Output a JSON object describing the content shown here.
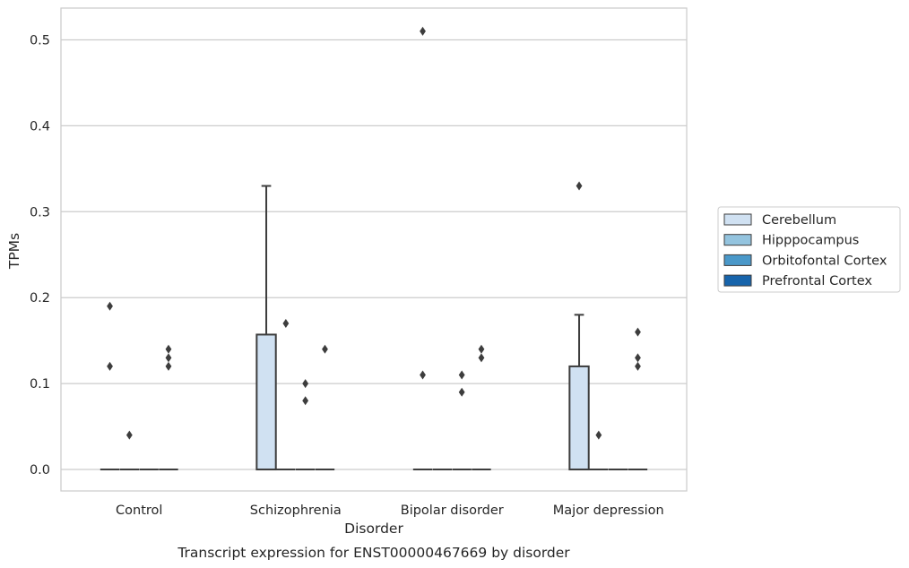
{
  "chart_data": {
    "type": "box",
    "caption": "Transcript expression for ENST00000467669 by disorder",
    "xlabel": "Disorder",
    "ylabel": "TPMs",
    "ylim": [
      -0.025,
      0.537
    ],
    "yticks": [
      "0.0",
      "0.1",
      "0.2",
      "0.3",
      "0.4",
      "0.5"
    ],
    "ytick_values": [
      0.0,
      0.1,
      0.2,
      0.3,
      0.4,
      0.5
    ],
    "grid": true,
    "legend_position": "right",
    "categories": [
      "Control",
      "Schizophrenia",
      "Bipolar disorder",
      "Major depression"
    ],
    "series": [
      {
        "name": "Cerebellum",
        "color": "#d0e1f2",
        "boxes": [
          {
            "q1": 0,
            "median": 0,
            "q3": 0,
            "whisker_low": 0,
            "whisker_high": 0,
            "outliers": [
              0.19,
              0.12
            ]
          },
          {
            "q1": 0,
            "median": 0,
            "q3": 0.157,
            "whisker_low": 0,
            "whisker_high": 0.33,
            "outliers": []
          },
          {
            "q1": 0,
            "median": 0,
            "q3": 0,
            "whisker_low": 0,
            "whisker_high": 0,
            "outliers": [
              0.51,
              0.11
            ]
          },
          {
            "q1": 0,
            "median": 0,
            "q3": 0.12,
            "whisker_low": 0,
            "whisker_high": 0.18,
            "outliers": [
              0.33
            ]
          }
        ]
      },
      {
        "name": "Hipppocampus",
        "color": "#94c4df",
        "boxes": [
          {
            "q1": 0,
            "median": 0,
            "q3": 0,
            "whisker_low": 0,
            "whisker_high": 0,
            "outliers": [
              0.04
            ]
          },
          {
            "q1": 0,
            "median": 0,
            "q3": 0,
            "whisker_low": 0,
            "whisker_high": 0,
            "outliers": [
              0.17
            ]
          },
          {
            "q1": 0,
            "median": 0,
            "q3": 0,
            "whisker_low": 0,
            "whisker_high": 0,
            "outliers": []
          },
          {
            "q1": 0,
            "median": 0,
            "q3": 0,
            "whisker_low": 0,
            "whisker_high": 0,
            "outliers": [
              0.04
            ]
          }
        ]
      },
      {
        "name": "Orbitofontal Cortex",
        "color": "#4a98c9",
        "boxes": [
          {
            "q1": 0,
            "median": 0,
            "q3": 0,
            "whisker_low": 0,
            "whisker_high": 0,
            "outliers": []
          },
          {
            "q1": 0,
            "median": 0,
            "q3": 0,
            "whisker_low": 0,
            "whisker_high": 0,
            "outliers": [
              0.1,
              0.08
            ]
          },
          {
            "q1": 0,
            "median": 0,
            "q3": 0,
            "whisker_low": 0,
            "whisker_high": 0,
            "outliers": [
              0.11,
              0.09
            ]
          },
          {
            "q1": 0,
            "median": 0,
            "q3": 0,
            "whisker_low": 0,
            "whisker_high": 0,
            "outliers": []
          }
        ]
      },
      {
        "name": "Prefrontal Cortex",
        "color": "#1764ab",
        "boxes": [
          {
            "q1": 0,
            "median": 0,
            "q3": 0,
            "whisker_low": 0,
            "whisker_high": 0,
            "outliers": [
              0.14,
              0.13,
              0.12
            ]
          },
          {
            "q1": 0,
            "median": 0,
            "q3": 0,
            "whisker_low": 0,
            "whisker_high": 0,
            "outliers": [
              0.14
            ]
          },
          {
            "q1": 0,
            "median": 0,
            "q3": 0,
            "whisker_low": 0,
            "whisker_high": 0,
            "outliers": [
              0.14,
              0.13
            ]
          },
          {
            "q1": 0,
            "median": 0,
            "q3": 0,
            "whisker_low": 0,
            "whisker_high": 0,
            "outliers": [
              0.16,
              0.13,
              0.12
            ]
          }
        ]
      }
    ]
  }
}
